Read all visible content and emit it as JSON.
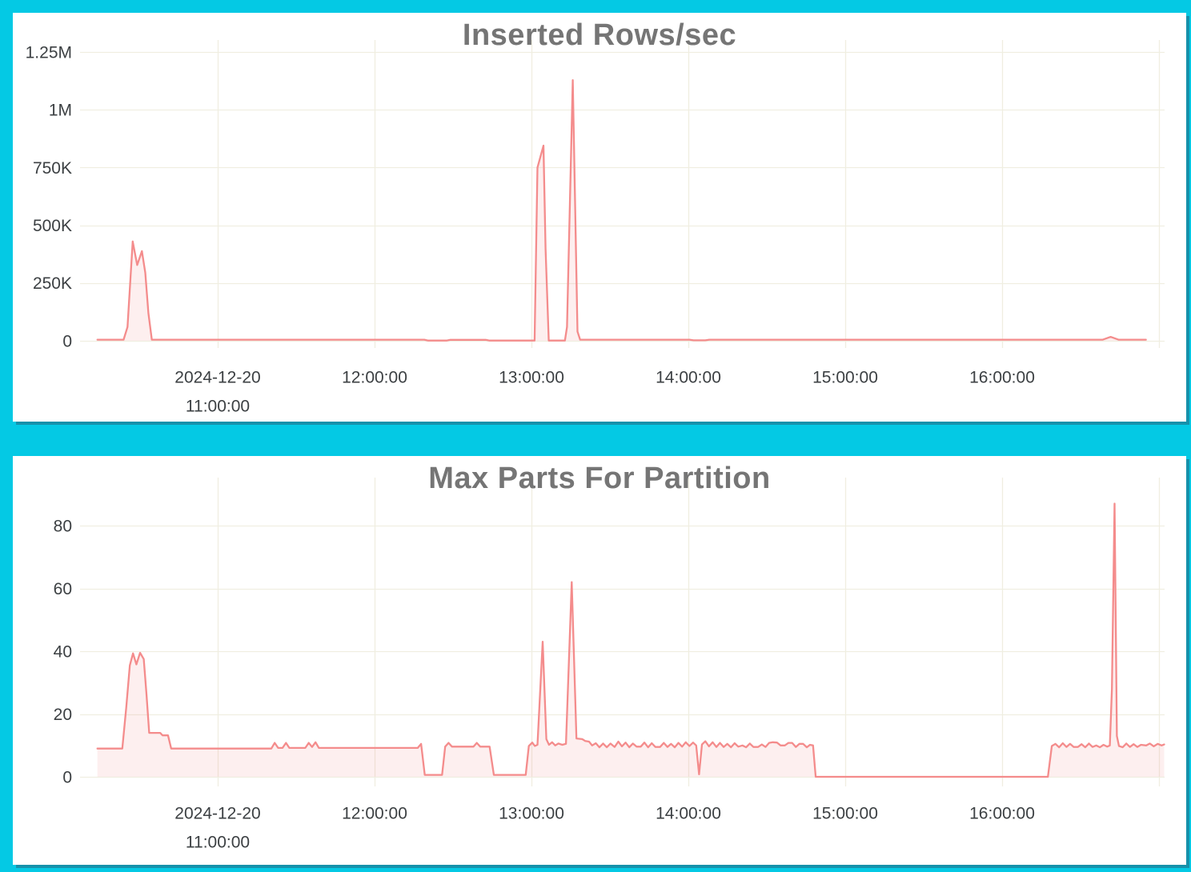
{
  "page": {
    "background_color": "#04c9e4",
    "panel_color": "#ffffff",
    "panel_shadow_color": "#1691ab"
  },
  "chart_data": [
    {
      "type": "area",
      "title": "Inserted Rows/sec",
      "xlabel": "",
      "ylabel": "",
      "x_unit": "time of day on 2024-12-20, stored as minutes since midnight",
      "x_range_minutes": [
        614,
        1015
      ],
      "ylim": [
        0,
        1294000
      ],
      "grid": true,
      "legend": "none",
      "line_color": "#f48c8c",
      "fill_color": "#f48c8c",
      "fill_opacity": 0.14,
      "grid_color": "#f0eee1",
      "tick_text_color": "#3c4043",
      "title_color": "#757575",
      "y_ticks": [
        {
          "v": 0,
          "label": "0"
        },
        {
          "v": 250000,
          "label": "250K"
        },
        {
          "v": 500000,
          "label": "500K"
        },
        {
          "v": 750000,
          "label": "750K"
        },
        {
          "v": 1000000,
          "label": "1M"
        },
        {
          "v": 1250000,
          "label": "1.25M"
        }
      ],
      "x_ticks": [
        {
          "t": 660,
          "labels": [
            "2024-12-20",
            "11:00:00"
          ]
        },
        {
          "t": 720,
          "labels": [
            "12:00:00"
          ]
        },
        {
          "t": 780,
          "labels": [
            "13:00:00"
          ]
        },
        {
          "t": 840,
          "labels": [
            "14:00:00"
          ]
        },
        {
          "t": 900,
          "labels": [
            "15:00:00"
          ]
        },
        {
          "t": 960,
          "labels": [
            "16:00:00"
          ]
        },
        {
          "t": 1020,
          "labels": []
        }
      ],
      "points": [
        [
          614,
          5000
        ],
        [
          624,
          5000
        ],
        [
          625.5,
          60000
        ],
        [
          627.5,
          430000
        ],
        [
          629.2,
          328000
        ],
        [
          631,
          388000
        ],
        [
          632.3,
          295000
        ],
        [
          633.5,
          120000
        ],
        [
          634.8,
          5000
        ],
        [
          700,
          5000
        ],
        [
          739,
          5000
        ],
        [
          740.5,
          1000
        ],
        [
          747.5,
          1000
        ],
        [
          749,
          4000
        ],
        [
          762.5,
          4000
        ],
        [
          764,
          1000
        ],
        [
          781.2,
          1000
        ],
        [
          782.3,
          750000
        ],
        [
          784.6,
          845000
        ],
        [
          785.4,
          400000
        ],
        [
          786.6,
          1000
        ],
        [
          792.8,
          1000
        ],
        [
          793.6,
          60000
        ],
        [
          795.8,
          1128000
        ],
        [
          796.6,
          650000
        ],
        [
          797.6,
          40000
        ],
        [
          798.6,
          5000
        ],
        [
          840.5,
          5000
        ],
        [
          842,
          2000
        ],
        [
          846.5,
          2000
        ],
        [
          848,
          5000
        ],
        [
          998.5,
          5000
        ],
        [
          1001.5,
          17000
        ],
        [
          1004.5,
          5000
        ],
        [
          1015,
          5000
        ]
      ]
    },
    {
      "type": "area",
      "title": "Max Parts For Partition",
      "xlabel": "",
      "ylabel": "",
      "x_unit": "time of day on 2024-12-20, stored as minutes since midnight",
      "x_range_minutes": [
        614,
        1022
      ],
      "ylim": [
        0,
        102
      ],
      "grid": true,
      "legend": "none",
      "line_color": "#f48c8c",
      "fill_color": "#f48c8c",
      "fill_opacity": 0.14,
      "grid_color": "#f0eee1",
      "tick_text_color": "#3c4043",
      "title_color": "#757575",
      "y_ticks": [
        {
          "v": 0,
          "label": "0"
        },
        {
          "v": 20,
          "label": "20"
        },
        {
          "v": 40,
          "label": "40"
        },
        {
          "v": 60,
          "label": "60"
        },
        {
          "v": 80,
          "label": "80"
        }
      ],
      "x_ticks": [
        {
          "t": 660,
          "labels": [
            "2024-12-20",
            "11:00:00"
          ]
        },
        {
          "t": 720,
          "labels": [
            "12:00:00"
          ]
        },
        {
          "t": 780,
          "labels": [
            "13:00:00"
          ]
        },
        {
          "t": 840,
          "labels": [
            "14:00:00"
          ]
        },
        {
          "t": 900,
          "labels": [
            "15:00:00"
          ]
        },
        {
          "t": 960,
          "labels": [
            "16:00:00"
          ]
        },
        {
          "t": 1020,
          "labels": []
        }
      ],
      "points": [
        [
          614,
          9
        ],
        [
          623.5,
          9
        ],
        [
          625,
          22
        ],
        [
          626.4,
          35.5
        ],
        [
          627.6,
          39.3
        ],
        [
          628.9,
          35.8
        ],
        [
          630.3,
          39.5
        ],
        [
          631.7,
          37.5
        ],
        [
          632.8,
          26
        ],
        [
          633.8,
          14
        ],
        [
          638,
          14
        ],
        [
          638.9,
          13.2
        ],
        [
          641,
          13.2
        ],
        [
          642.2,
          9
        ],
        [
          680.5,
          9
        ],
        [
          681.8,
          10.8
        ],
        [
          683.1,
          9.2
        ],
        [
          684.8,
          9.2
        ],
        [
          686.1,
          10.8
        ],
        [
          687.4,
          9.2
        ],
        [
          693.5,
          9.2
        ],
        [
          694.8,
          10.8
        ],
        [
          696.1,
          9.5
        ],
        [
          697.4,
          11
        ],
        [
          698.7,
          9.2
        ],
        [
          736.5,
          9.2
        ],
        [
          737.8,
          10.5
        ],
        [
          739.2,
          0.6
        ],
        [
          745.8,
          0.6
        ],
        [
          747,
          9.6
        ],
        [
          748.3,
          10.8
        ],
        [
          749.6,
          9.6
        ],
        [
          757.8,
          9.6
        ],
        [
          759.1,
          10.8
        ],
        [
          760.4,
          9.6
        ],
        [
          764,
          9.6
        ],
        [
          765.6,
          0.6
        ],
        [
          777.8,
          0.6
        ],
        [
          779,
          9.8
        ],
        [
          780.3,
          10.9
        ],
        [
          781.3,
          9.8
        ],
        [
          782.3,
          10.2
        ],
        [
          784.3,
          43
        ],
        [
          785.7,
          12
        ],
        [
          786.7,
          10.2
        ],
        [
          787.9,
          11
        ],
        [
          789.1,
          10
        ],
        [
          790.3,
          10.6
        ],
        [
          791.8,
          10.2
        ],
        [
          793.2,
          10.5
        ],
        [
          795.4,
          62
        ],
        [
          797.2,
          12.2
        ],
        [
          799.4,
          12
        ],
        [
          800.6,
          11.4
        ],
        [
          802,
          11.2
        ],
        [
          803.2,
          10
        ],
        [
          804.6,
          10.7
        ],
        [
          806,
          9.4
        ],
        [
          807.4,
          10.6
        ],
        [
          808.8,
          9.4
        ],
        [
          810.2,
          10.6
        ],
        [
          811.8,
          9.5
        ],
        [
          813.2,
          11.2
        ],
        [
          814.6,
          9.7
        ],
        [
          816,
          10.9
        ],
        [
          817.4,
          9.4
        ],
        [
          818.8,
          10.6
        ],
        [
          820.2,
          9.6
        ],
        [
          821.8,
          9.6
        ],
        [
          823.2,
          10.9
        ],
        [
          824.6,
          9.4
        ],
        [
          826,
          10.7
        ],
        [
          827.4,
          9.5
        ],
        [
          829.2,
          9.5
        ],
        [
          830.6,
          10.8
        ],
        [
          832,
          9.5
        ],
        [
          833.4,
          10.5
        ],
        [
          834.8,
          9.4
        ],
        [
          836.2,
          10.8
        ],
        [
          837.6,
          9.6
        ],
        [
          839,
          11
        ],
        [
          840.4,
          9.8
        ],
        [
          841.8,
          10.9
        ],
        [
          843,
          10
        ],
        [
          844.1,
          0.8
        ],
        [
          845.2,
          10.3
        ],
        [
          846.5,
          11.3
        ],
        [
          847.9,
          9.7
        ],
        [
          849.3,
          11
        ],
        [
          850.7,
          9.5
        ],
        [
          852.1,
          10.8
        ],
        [
          853.5,
          9.5
        ],
        [
          854.9,
          10.5
        ],
        [
          856.3,
          9.4
        ],
        [
          857.7,
          10.7
        ],
        [
          859.1,
          9.6
        ],
        [
          860.7,
          10
        ],
        [
          862.1,
          9.4
        ],
        [
          863.5,
          10.6
        ],
        [
          864.9,
          9.5
        ],
        [
          866.7,
          9.5
        ],
        [
          868.1,
          10.3
        ],
        [
          869.5,
          9.5
        ],
        [
          870.9,
          10.8
        ],
        [
          872.3,
          11
        ],
        [
          873.9,
          10.9
        ],
        [
          875.3,
          10
        ],
        [
          876.9,
          10
        ],
        [
          878.3,
          10.8
        ],
        [
          879.7,
          10.8
        ],
        [
          881.1,
          9.5
        ],
        [
          882.5,
          10.5
        ],
        [
          883.9,
          10.5
        ],
        [
          885.3,
          9.4
        ],
        [
          886.5,
          10.2
        ],
        [
          887.7,
          10
        ],
        [
          888.7,
          0
        ],
        [
          977.5,
          0
        ],
        [
          979,
          9.8
        ],
        [
          980.4,
          10.5
        ],
        [
          981.8,
          9.4
        ],
        [
          983.2,
          10.7
        ],
        [
          984.6,
          9.5
        ],
        [
          986,
          10.5
        ],
        [
          987.4,
          9.5
        ],
        [
          989,
          9.5
        ],
        [
          990.4,
          10.4
        ],
        [
          991.8,
          9.4
        ],
        [
          993.2,
          10.6
        ],
        [
          994.6,
          9.5
        ],
        [
          996,
          10
        ],
        [
          997.4,
          9.4
        ],
        [
          998.8,
          10.2
        ],
        [
          1000.2,
          9.6
        ],
        [
          1001.2,
          10
        ],
        [
          1002,
          28
        ],
        [
          1003,
          87
        ],
        [
          1003.9,
          13
        ],
        [
          1004.7,
          9.8
        ],
        [
          1006.1,
          9.4
        ],
        [
          1007.5,
          10.6
        ],
        [
          1008.9,
          9.5
        ],
        [
          1010.3,
          10.4
        ],
        [
          1011.7,
          9.5
        ],
        [
          1013.1,
          10.2
        ],
        [
          1015.1,
          10
        ],
        [
          1016.5,
          10.6
        ],
        [
          1018,
          9.7
        ],
        [
          1019.5,
          10.5
        ],
        [
          1021,
          10
        ],
        [
          1022,
          10.3
        ]
      ]
    }
  ]
}
